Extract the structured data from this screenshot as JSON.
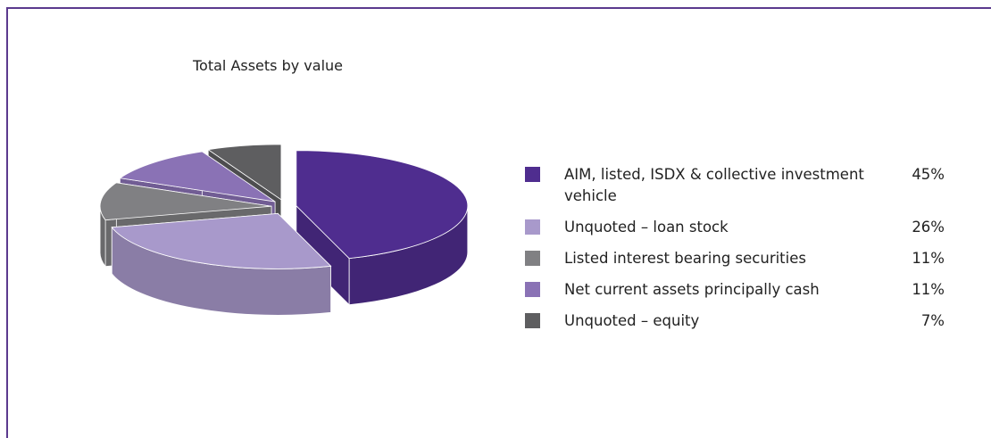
{
  "chart_data": {
    "type": "pie",
    "title": "Total Assets by value",
    "categories": [
      "AIM, listed, ISDX & collective investment vehicle",
      "Unquoted – loan stock",
      "Listed interest bearing securities",
      "Net current assets principally cash",
      "Unquoted – equity"
    ],
    "values": [
      45,
      26,
      11,
      11,
      7
    ],
    "value_labels": [
      "45%",
      "26%",
      "11%",
      "11%",
      "7%"
    ],
    "colors": [
      "#4f2d8f",
      "#a899cb",
      "#808083",
      "#8a72b5",
      "#5e5e60"
    ]
  }
}
